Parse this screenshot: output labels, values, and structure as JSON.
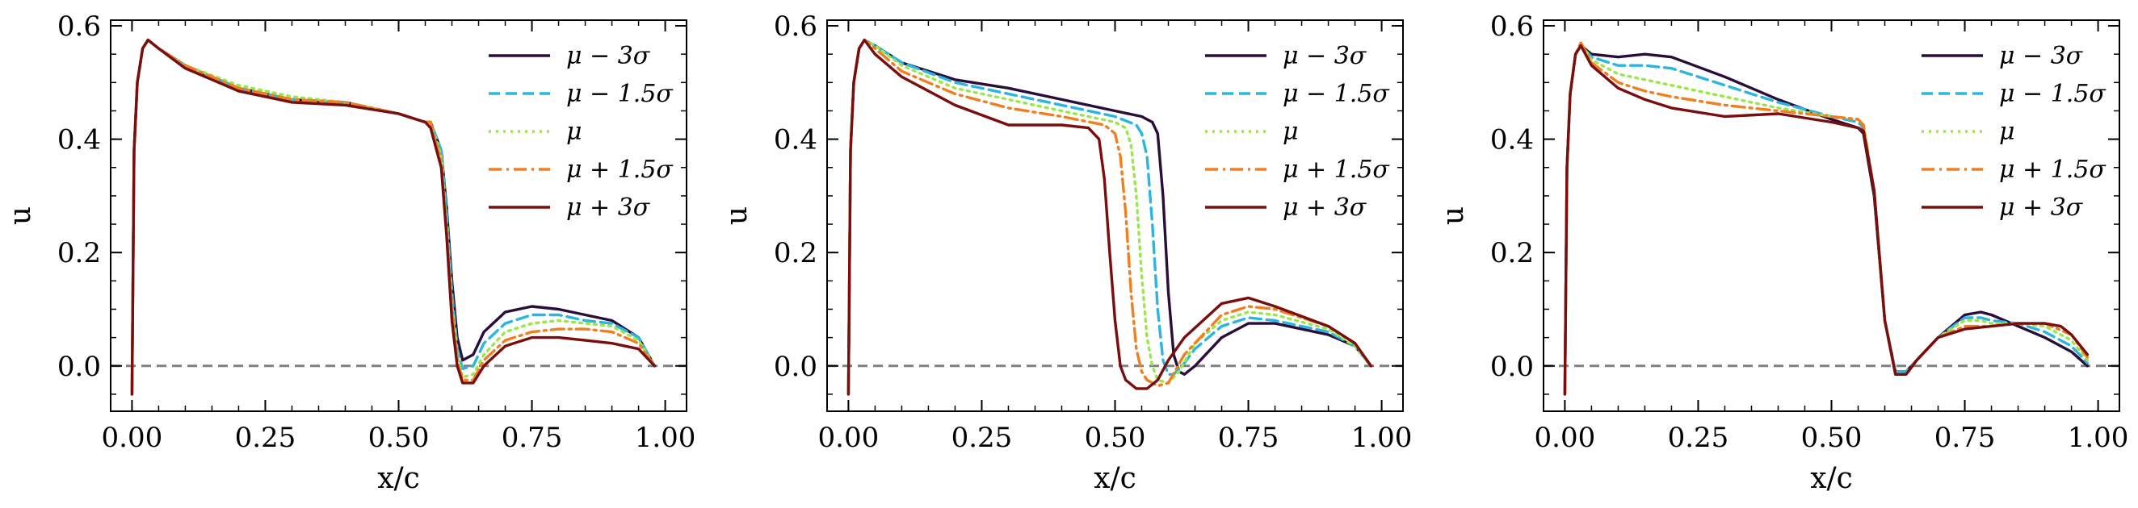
{
  "chart_data": [
    {
      "type": "line",
      "title": "",
      "xlabel": "x/c",
      "ylabel": "u",
      "xlim": [
        -0.04,
        1.04
      ],
      "ylim": [
        -0.08,
        0.61
      ],
      "xticks": [
        0.0,
        0.25,
        0.5,
        0.75,
        1.0
      ],
      "xtick_labels": [
        "0.00",
        "0.25",
        "0.50",
        "0.75",
        "1.00"
      ],
      "yticks": [
        0.0,
        0.2,
        0.4,
        0.6
      ],
      "ytick_labels": [
        "0.0",
        "0.2",
        "0.4",
        "0.6"
      ],
      "reference_line": {
        "y": 0.0,
        "color": "#808080",
        "style": "dashed"
      },
      "legend_position": "top-right",
      "series": [
        {
          "name": "μ − 3σ",
          "color": "#2a0e3a",
          "dash": "solid",
          "x": [
            0.0,
            0.004,
            0.01,
            0.02,
            0.03,
            0.05,
            0.1,
            0.2,
            0.3,
            0.4,
            0.5,
            0.55,
            0.56,
            0.58,
            0.59,
            0.6,
            0.61,
            0.62,
            0.64,
            0.66,
            0.7,
            0.75,
            0.8,
            0.85,
            0.9,
            0.95,
            0.98
          ],
          "y": [
            -0.05,
            0.38,
            0.5,
            0.56,
            0.575,
            0.56,
            0.53,
            0.49,
            0.47,
            0.465,
            0.445,
            0.43,
            0.43,
            0.38,
            0.28,
            0.15,
            0.05,
            0.01,
            0.02,
            0.06,
            0.095,
            0.105,
            0.1,
            0.09,
            0.08,
            0.05,
            0.0
          ]
        },
        {
          "name": "μ − 1.5σ",
          "color": "#2bb5e0",
          "dash": "dashed",
          "x": [
            0.0,
            0.004,
            0.01,
            0.02,
            0.03,
            0.05,
            0.1,
            0.2,
            0.3,
            0.4,
            0.5,
            0.55,
            0.56,
            0.58,
            0.59,
            0.6,
            0.61,
            0.62,
            0.64,
            0.66,
            0.7,
            0.75,
            0.8,
            0.85,
            0.9,
            0.95,
            0.98
          ],
          "y": [
            -0.05,
            0.38,
            0.5,
            0.56,
            0.575,
            0.56,
            0.53,
            0.49,
            0.47,
            0.465,
            0.445,
            0.43,
            0.43,
            0.38,
            0.27,
            0.13,
            0.03,
            -0.005,
            0.0,
            0.04,
            0.075,
            0.09,
            0.09,
            0.08,
            0.075,
            0.05,
            0.0
          ]
        },
        {
          "name": "μ",
          "color": "#9be64a",
          "dash": "dotted",
          "x": [
            0.0,
            0.004,
            0.01,
            0.02,
            0.03,
            0.05,
            0.1,
            0.2,
            0.3,
            0.4,
            0.5,
            0.55,
            0.56,
            0.58,
            0.59,
            0.6,
            0.61,
            0.62,
            0.64,
            0.66,
            0.7,
            0.75,
            0.8,
            0.85,
            0.9,
            0.95,
            0.98
          ],
          "y": [
            -0.05,
            0.38,
            0.5,
            0.56,
            0.575,
            0.56,
            0.53,
            0.495,
            0.475,
            0.465,
            0.445,
            0.43,
            0.43,
            0.37,
            0.25,
            0.11,
            0.02,
            -0.02,
            -0.015,
            0.02,
            0.06,
            0.075,
            0.08,
            0.075,
            0.07,
            0.045,
            0.0
          ]
        },
        {
          "name": "μ + 1.5σ",
          "color": "#f07f22",
          "dash": "dashdot",
          "x": [
            0.0,
            0.004,
            0.01,
            0.02,
            0.03,
            0.05,
            0.1,
            0.2,
            0.3,
            0.4,
            0.5,
            0.55,
            0.56,
            0.58,
            0.59,
            0.6,
            0.61,
            0.62,
            0.64,
            0.66,
            0.7,
            0.75,
            0.8,
            0.85,
            0.9,
            0.95,
            0.98
          ],
          "y": [
            -0.05,
            0.38,
            0.5,
            0.56,
            0.575,
            0.56,
            0.53,
            0.49,
            0.47,
            0.465,
            0.445,
            0.43,
            0.43,
            0.36,
            0.24,
            0.1,
            0.01,
            -0.025,
            -0.025,
            0.01,
            0.045,
            0.06,
            0.065,
            0.065,
            0.06,
            0.04,
            0.0
          ]
        },
        {
          "name": "μ + 3σ",
          "color": "#7a0d0d",
          "dash": "solid",
          "x": [
            0.0,
            0.004,
            0.01,
            0.02,
            0.03,
            0.05,
            0.1,
            0.2,
            0.3,
            0.4,
            0.5,
            0.55,
            0.56,
            0.58,
            0.59,
            0.6,
            0.61,
            0.62,
            0.64,
            0.66,
            0.7,
            0.75,
            0.8,
            0.85,
            0.9,
            0.95,
            0.98
          ],
          "y": [
            -0.05,
            0.38,
            0.5,
            0.56,
            0.575,
            0.56,
            0.525,
            0.485,
            0.465,
            0.46,
            0.445,
            0.43,
            0.42,
            0.35,
            0.23,
            0.08,
            0.0,
            -0.03,
            -0.03,
            0.0,
            0.035,
            0.05,
            0.05,
            0.045,
            0.04,
            0.03,
            0.0
          ]
        }
      ]
    },
    {
      "type": "line",
      "title": "",
      "xlabel": "x/c",
      "ylabel": "u",
      "xlim": [
        -0.04,
        1.04
      ],
      "ylim": [
        -0.08,
        0.61
      ],
      "xticks": [
        0.0,
        0.25,
        0.5,
        0.75,
        1.0
      ],
      "xtick_labels": [
        "0.00",
        "0.25",
        "0.50",
        "0.75",
        "1.00"
      ],
      "yticks": [
        0.0,
        0.2,
        0.4,
        0.6
      ],
      "ytick_labels": [
        "0.0",
        "0.2",
        "0.4",
        "0.6"
      ],
      "reference_line": {
        "y": 0.0,
        "color": "#808080",
        "style": "dashed"
      },
      "legend_position": "top-right",
      "series": [
        {
          "name": "μ − 3σ",
          "color": "#2a0e3a",
          "dash": "solid",
          "x": [
            0.0,
            0.004,
            0.01,
            0.02,
            0.03,
            0.05,
            0.1,
            0.2,
            0.3,
            0.4,
            0.5,
            0.55,
            0.57,
            0.58,
            0.59,
            0.6,
            0.61,
            0.62,
            0.63,
            0.65,
            0.7,
            0.75,
            0.8,
            0.9,
            0.95,
            0.98
          ],
          "y": [
            -0.05,
            0.38,
            0.5,
            0.56,
            0.575,
            0.565,
            0.535,
            0.505,
            0.49,
            0.47,
            0.45,
            0.44,
            0.43,
            0.41,
            0.3,
            0.13,
            0.02,
            -0.01,
            -0.015,
            0.0,
            0.05,
            0.075,
            0.075,
            0.055,
            0.035,
            0.0
          ]
        },
        {
          "name": "μ − 1.5σ",
          "color": "#2bb5e0",
          "dash": "dashed",
          "x": [
            0.0,
            0.004,
            0.01,
            0.02,
            0.03,
            0.05,
            0.1,
            0.2,
            0.3,
            0.4,
            0.5,
            0.54,
            0.55,
            0.56,
            0.57,
            0.58,
            0.59,
            0.6,
            0.61,
            0.63,
            0.65,
            0.7,
            0.75,
            0.8,
            0.9,
            0.95,
            0.98
          ],
          "y": [
            -0.05,
            0.38,
            0.5,
            0.56,
            0.575,
            0.565,
            0.535,
            0.5,
            0.48,
            0.46,
            0.44,
            0.425,
            0.41,
            0.37,
            0.25,
            0.1,
            0.01,
            -0.015,
            -0.015,
            0.005,
            0.03,
            0.07,
            0.085,
            0.08,
            0.06,
            0.035,
            0.0
          ]
        },
        {
          "name": "μ",
          "color": "#9be64a",
          "dash": "dotted",
          "x": [
            0.0,
            0.004,
            0.01,
            0.02,
            0.03,
            0.05,
            0.1,
            0.2,
            0.3,
            0.4,
            0.5,
            0.52,
            0.53,
            0.54,
            0.55,
            0.56,
            0.57,
            0.58,
            0.6,
            0.62,
            0.65,
            0.7,
            0.75,
            0.8,
            0.9,
            0.95,
            0.98
          ],
          "y": [
            -0.05,
            0.38,
            0.5,
            0.56,
            0.575,
            0.565,
            0.53,
            0.49,
            0.47,
            0.45,
            0.43,
            0.42,
            0.39,
            0.3,
            0.16,
            0.05,
            0.0,
            -0.025,
            -0.03,
            -0.01,
            0.04,
            0.08,
            0.095,
            0.09,
            0.065,
            0.035,
            0.0
          ]
        },
        {
          "name": "μ + 1.5σ",
          "color": "#f07f22",
          "dash": "dashdot",
          "x": [
            0.0,
            0.004,
            0.01,
            0.02,
            0.03,
            0.05,
            0.1,
            0.2,
            0.3,
            0.4,
            0.48,
            0.5,
            0.51,
            0.52,
            0.53,
            0.54,
            0.55,
            0.56,
            0.58,
            0.6,
            0.63,
            0.7,
            0.75,
            0.8,
            0.9,
            0.95,
            0.98
          ],
          "y": [
            -0.05,
            0.38,
            0.5,
            0.56,
            0.575,
            0.56,
            0.52,
            0.48,
            0.455,
            0.44,
            0.425,
            0.41,
            0.37,
            0.27,
            0.13,
            0.03,
            -0.01,
            -0.025,
            -0.035,
            -0.03,
            0.02,
            0.09,
            0.105,
            0.1,
            0.07,
            0.04,
            0.0
          ]
        },
        {
          "name": "μ + 3σ",
          "color": "#7a0d0d",
          "dash": "solid",
          "x": [
            0.0,
            0.004,
            0.01,
            0.02,
            0.03,
            0.05,
            0.1,
            0.2,
            0.3,
            0.4,
            0.45,
            0.47,
            0.48,
            0.49,
            0.5,
            0.51,
            0.52,
            0.54,
            0.56,
            0.58,
            0.6,
            0.63,
            0.7,
            0.75,
            0.8,
            0.9,
            0.95,
            0.98
          ],
          "y": [
            -0.05,
            0.38,
            0.5,
            0.56,
            0.575,
            0.55,
            0.51,
            0.46,
            0.425,
            0.425,
            0.42,
            0.4,
            0.33,
            0.2,
            0.08,
            0.0,
            -0.025,
            -0.04,
            -0.04,
            -0.025,
            0.01,
            0.05,
            0.11,
            0.12,
            0.105,
            0.07,
            0.04,
            0.0
          ]
        }
      ]
    },
    {
      "type": "line",
      "title": "",
      "xlabel": "x/c",
      "ylabel": "u",
      "xlim": [
        -0.04,
        1.04
      ],
      "ylim": [
        -0.08,
        0.61
      ],
      "xticks": [
        0.0,
        0.25,
        0.5,
        0.75,
        1.0
      ],
      "xtick_labels": [
        "0.00",
        "0.25",
        "0.50",
        "0.75",
        "1.00"
      ],
      "yticks": [
        0.0,
        0.2,
        0.4,
        0.6
      ],
      "ytick_labels": [
        "0.0",
        "0.2",
        "0.4",
        "0.6"
      ],
      "reference_line": {
        "y": 0.0,
        "color": "#808080",
        "style": "dashed"
      },
      "legend_position": "top-right",
      "series": [
        {
          "name": "μ − 3σ",
          "color": "#2a0e3a",
          "dash": "solid",
          "x": [
            0.0,
            0.004,
            0.01,
            0.02,
            0.03,
            0.05,
            0.1,
            0.15,
            0.2,
            0.3,
            0.4,
            0.5,
            0.55,
            0.56,
            0.58,
            0.6,
            0.62,
            0.64,
            0.66,
            0.7,
            0.75,
            0.78,
            0.8,
            0.85,
            0.9,
            0.95,
            0.98
          ],
          "y": [
            -0.05,
            0.35,
            0.48,
            0.55,
            0.565,
            0.55,
            0.545,
            0.55,
            0.545,
            0.51,
            0.47,
            0.435,
            0.42,
            0.41,
            0.3,
            0.08,
            -0.01,
            -0.01,
            0.01,
            0.05,
            0.09,
            0.095,
            0.09,
            0.07,
            0.05,
            0.025,
            0.0
          ]
        },
        {
          "name": "μ − 1.5σ",
          "color": "#2bb5e0",
          "dash": "dashed",
          "x": [
            0.0,
            0.004,
            0.01,
            0.02,
            0.03,
            0.05,
            0.1,
            0.15,
            0.2,
            0.3,
            0.4,
            0.5,
            0.55,
            0.56,
            0.58,
            0.6,
            0.62,
            0.64,
            0.66,
            0.7,
            0.75,
            0.78,
            0.8,
            0.85,
            0.9,
            0.95,
            0.98
          ],
          "y": [
            -0.05,
            0.35,
            0.48,
            0.55,
            0.565,
            0.545,
            0.53,
            0.53,
            0.525,
            0.495,
            0.465,
            0.44,
            0.43,
            0.42,
            0.31,
            0.08,
            -0.01,
            -0.01,
            0.01,
            0.05,
            0.085,
            0.085,
            0.08,
            0.075,
            0.06,
            0.035,
            0.005
          ]
        },
        {
          "name": "μ",
          "color": "#9be64a",
          "dash": "dotted",
          "x": [
            0.0,
            0.004,
            0.01,
            0.02,
            0.03,
            0.05,
            0.1,
            0.15,
            0.2,
            0.3,
            0.4,
            0.5,
            0.55,
            0.56,
            0.58,
            0.6,
            0.62,
            0.64,
            0.66,
            0.7,
            0.75,
            0.78,
            0.8,
            0.85,
            0.9,
            0.95,
            0.98
          ],
          "y": [
            -0.05,
            0.35,
            0.48,
            0.55,
            0.57,
            0.54,
            0.515,
            0.505,
            0.495,
            0.475,
            0.455,
            0.44,
            0.435,
            0.425,
            0.31,
            0.08,
            -0.015,
            -0.015,
            0.01,
            0.05,
            0.08,
            0.08,
            0.075,
            0.075,
            0.07,
            0.045,
            0.01
          ]
        },
        {
          "name": "μ + 1.5σ",
          "color": "#f07f22",
          "dash": "dashdot",
          "x": [
            0.0,
            0.004,
            0.01,
            0.02,
            0.03,
            0.05,
            0.1,
            0.15,
            0.2,
            0.3,
            0.4,
            0.5,
            0.55,
            0.56,
            0.58,
            0.6,
            0.62,
            0.64,
            0.66,
            0.7,
            0.75,
            0.78,
            0.8,
            0.85,
            0.9,
            0.95,
            0.98
          ],
          "y": [
            -0.05,
            0.35,
            0.48,
            0.55,
            0.57,
            0.535,
            0.5,
            0.485,
            0.475,
            0.46,
            0.45,
            0.44,
            0.435,
            0.425,
            0.31,
            0.08,
            -0.015,
            -0.015,
            0.01,
            0.05,
            0.07,
            0.07,
            0.07,
            0.075,
            0.075,
            0.055,
            0.015
          ]
        },
        {
          "name": "μ + 3σ",
          "color": "#7a0d0d",
          "dash": "solid",
          "x": [
            0.0,
            0.004,
            0.01,
            0.02,
            0.03,
            0.05,
            0.1,
            0.15,
            0.2,
            0.3,
            0.4,
            0.5,
            0.55,
            0.56,
            0.58,
            0.6,
            0.62,
            0.64,
            0.66,
            0.7,
            0.75,
            0.8,
            0.85,
            0.9,
            0.93,
            0.95,
            0.98
          ],
          "y": [
            -0.05,
            0.35,
            0.48,
            0.55,
            0.565,
            0.53,
            0.49,
            0.47,
            0.455,
            0.44,
            0.445,
            0.43,
            0.42,
            0.415,
            0.31,
            0.08,
            -0.015,
            -0.015,
            0.01,
            0.05,
            0.065,
            0.07,
            0.075,
            0.075,
            0.07,
            0.055,
            0.02
          ]
        }
      ]
    }
  ]
}
